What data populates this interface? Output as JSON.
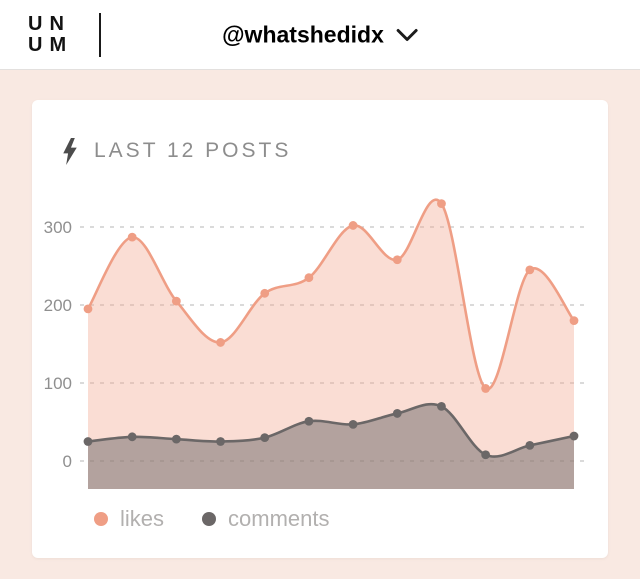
{
  "header": {
    "logo_line1": "UN",
    "logo_line2": "UM",
    "account": "@whatshedidx"
  },
  "card": {
    "title": "LAST 12 POSTS",
    "legend": {
      "likes": "likes",
      "comments": "comments"
    }
  },
  "theme": {
    "background": "#f9e9e2",
    "card_background": "#ffffff",
    "title_gray": "#8d8d8d",
    "legend_gray": "#b2b0af",
    "grid_gray": "#c4c4c4"
  },
  "chart_data": {
    "type": "area",
    "title": "LAST 12 POSTS",
    "xlabel": "",
    "ylabel": "",
    "x": [
      1,
      2,
      3,
      4,
      5,
      6,
      7,
      8,
      9,
      10,
      11,
      12
    ],
    "yticks": [
      300,
      200,
      100,
      0
    ],
    "ylim": [
      0,
      350
    ],
    "grid": "dashed-horizontal",
    "legend_position": "bottom-left",
    "series": [
      {
        "name": "likes",
        "color": "#ef9e85",
        "fill": "rgba(243,166,141,0.38)",
        "values": [
          195,
          287,
          205,
          152,
          215,
          235,
          302,
          258,
          330,
          93,
          245,
          180
        ]
      },
      {
        "name": "comments",
        "color": "#6b6767",
        "fill": "rgba(108,104,103,0.5)",
        "values": [
          25,
          31,
          28,
          25,
          30,
          51,
          47,
          61,
          70,
          8,
          20,
          32
        ]
      }
    ]
  }
}
